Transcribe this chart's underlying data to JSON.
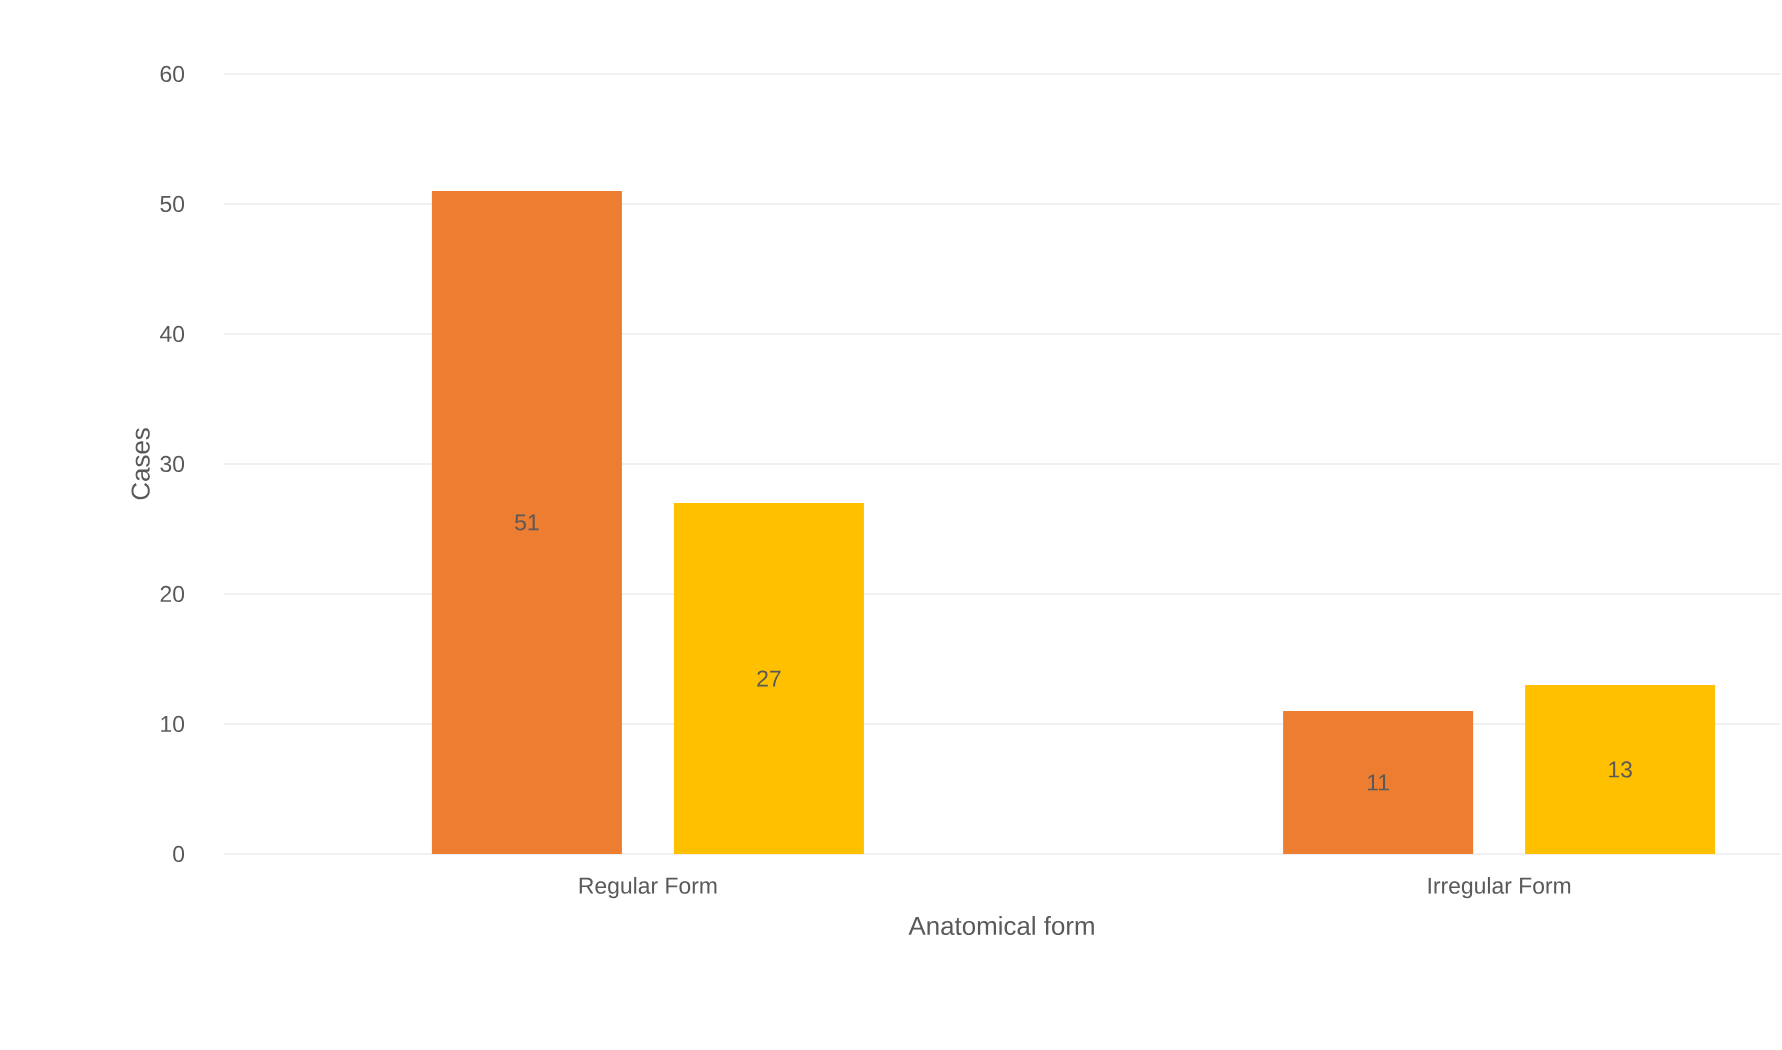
{
  "chart_data": {
    "type": "bar",
    "xlabel": "Anatomical form",
    "ylabel": "Cases",
    "categories": [
      "Regular Form",
      "Irregular Form"
    ],
    "series": [
      {
        "color": "#ed7d31",
        "values": [
          51,
          11
        ]
      },
      {
        "color": "#ffc000",
        "values": [
          27,
          13
        ]
      }
    ],
    "ylim": [
      0,
      60
    ],
    "yticks": [
      0,
      10,
      20,
      30,
      40,
      50,
      60
    ],
    "grid": "y",
    "data_labels": true
  }
}
